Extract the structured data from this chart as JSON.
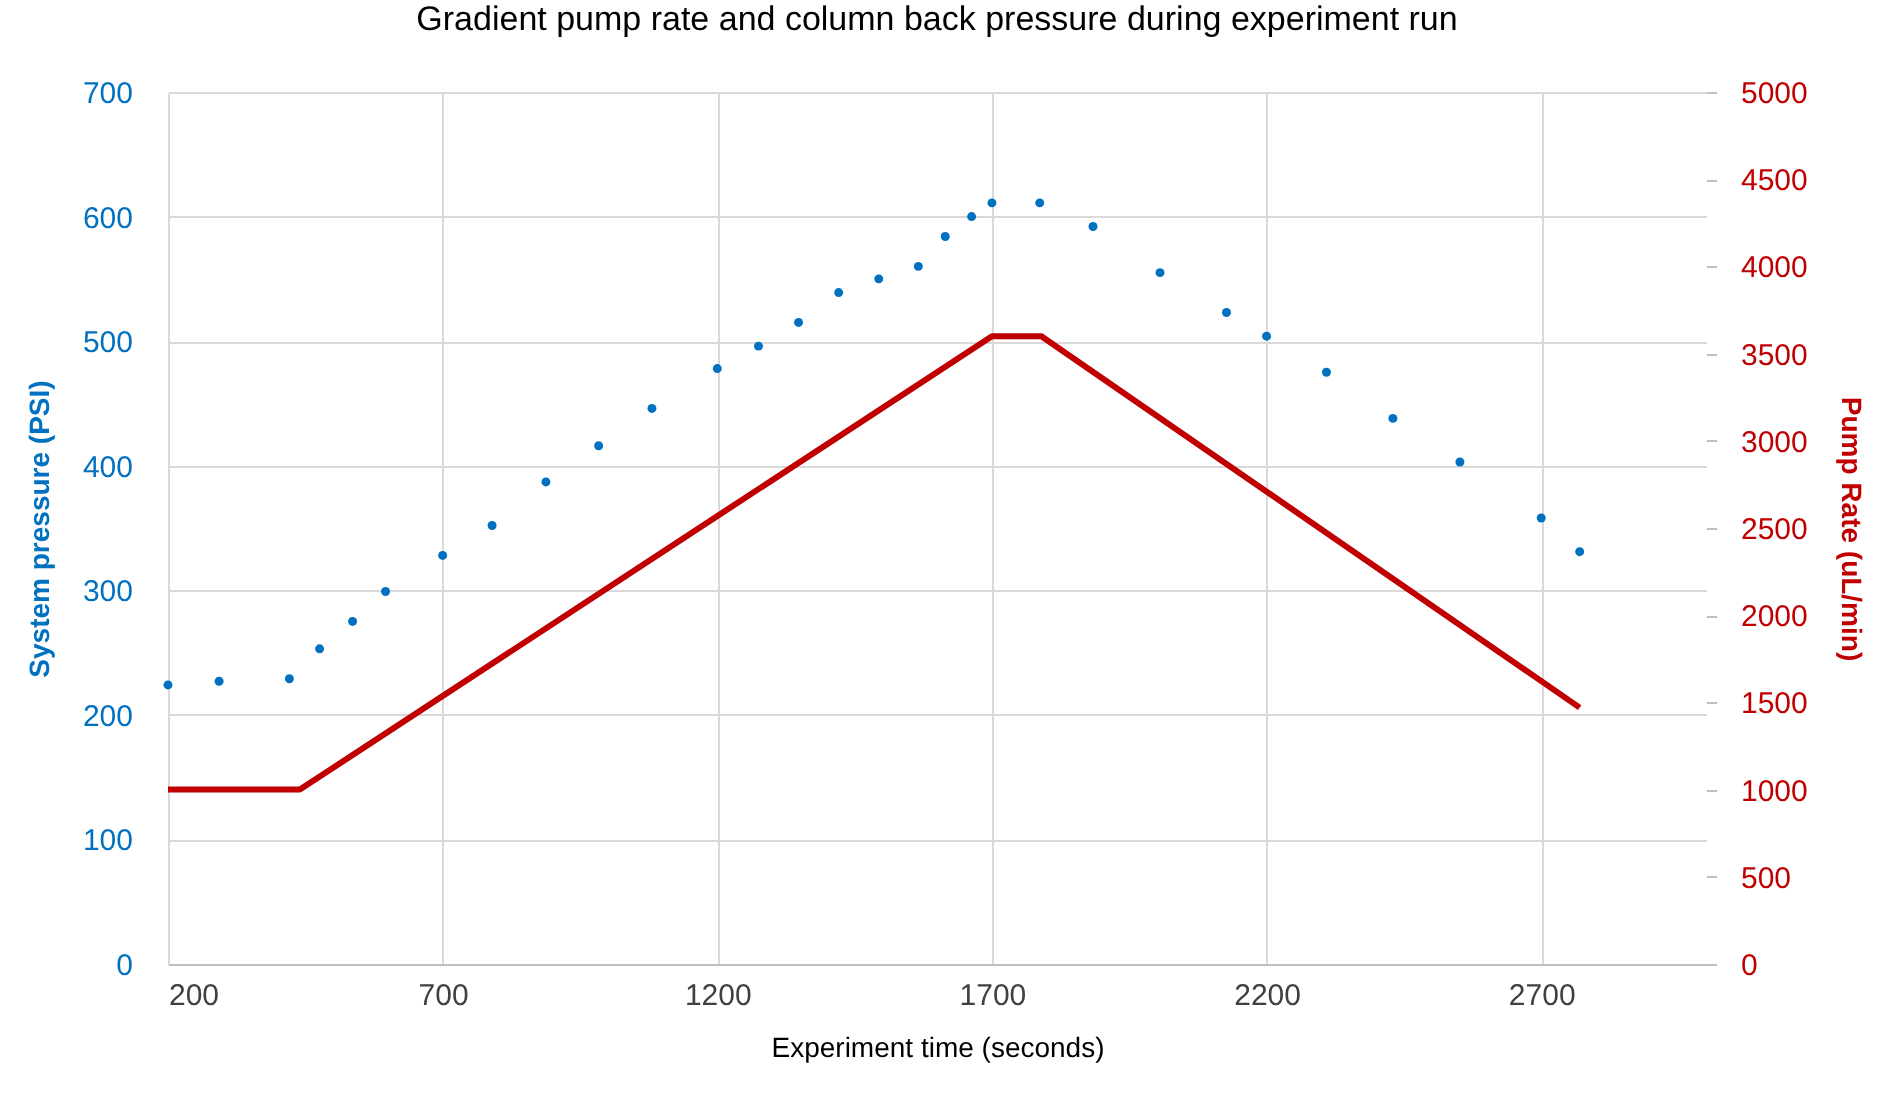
{
  "chart_data": {
    "type": "scatter",
    "title": "Gradient pump rate and  column back pressure during experiment run",
    "xlabel": "Experiment time (seconds)",
    "ylabel": "System pressure  (PSI)",
    "y2label": "Pump Rate (uL/min)",
    "xlim": [
      200,
      3000
    ],
    "xticks": [
      200,
      700,
      1200,
      1700,
      2200,
      2700
    ],
    "ylim": [
      0,
      700
    ],
    "yticks": [
      0,
      100,
      200,
      300,
      400,
      500,
      600,
      700
    ],
    "y2lim": [
      0,
      5000
    ],
    "y2ticks": [
      0,
      500,
      1000,
      1500,
      2000,
      2500,
      3000,
      3500,
      4000,
      4500,
      5000
    ],
    "grid": true,
    "marker": "circle",
    "series": [
      {
        "type": "scatter",
        "color": "#0070c0",
        "x": [
          200,
          293,
          421,
          476,
          536,
          596,
          700,
          790,
          888,
          984,
          1081,
          1200,
          1275,
          1348,
          1421,
          1494,
          1566,
          1615,
          1663,
          1700,
          1787,
          1884,
          2006,
          2127,
          2200,
          2309,
          2430,
          2552,
          2700,
          2770
        ],
        "values": [
          224,
          227,
          229,
          253,
          275,
          299,
          328,
          352,
          387,
          416,
          446,
          478,
          496,
          515,
          539,
          550,
          560,
          584,
          600,
          611,
          611,
          592,
          555,
          523,
          504,
          475,
          438,
          403,
          358,
          331
        ]
      },
      {
        "type": "line",
        "axis": "y2",
        "color": "#c00000",
        "line_style": "solid",
        "marker": "none",
        "x": [
          200,
          440,
          1700,
          1790,
          2770
        ],
        "values": [
          1000,
          1000,
          3600,
          3600,
          1470
        ]
      }
    ]
  }
}
